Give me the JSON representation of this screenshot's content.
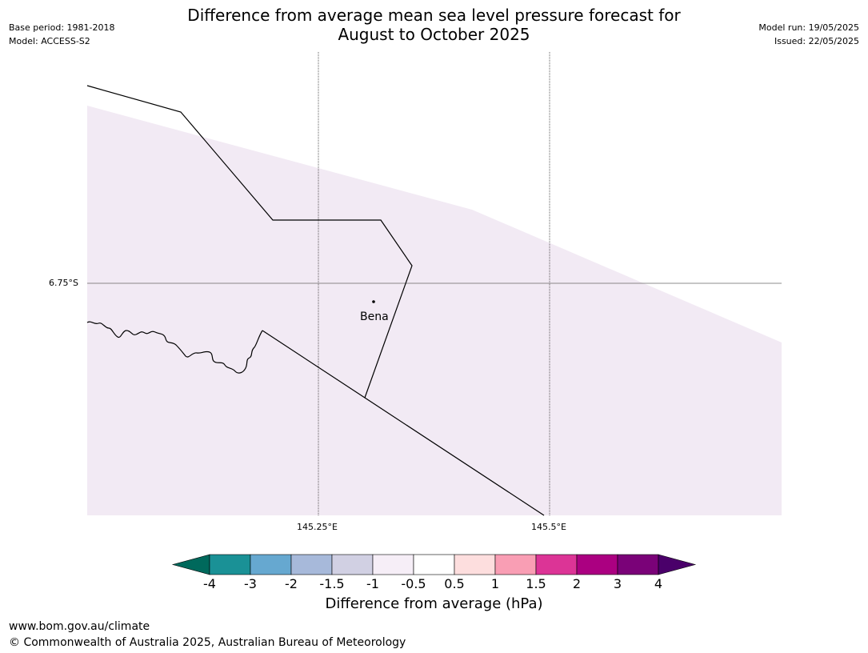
{
  "header": {
    "title_line1": "Difference from average mean sea level pressure forecast for",
    "title_line2": "August to October 2025",
    "base_period": "Base period: 1981-2018",
    "model": "Model: ACCESS-S2",
    "model_run": "Model run: 19/05/2025",
    "issued": "Issued: 22/05/2025"
  },
  "map": {
    "lat_label": "6.75°S",
    "lon_labels": [
      "145.25°E",
      "145.5°E"
    ],
    "place": "Bena",
    "shading_color": "#f2eaf4"
  },
  "colorbar": {
    "label": "Difference from average (hPa)",
    "ticks": [
      "-4",
      "-3",
      "-2",
      "-1.5",
      "-1",
      "-0.5",
      "0.5",
      "1",
      "1.5",
      "2",
      "3",
      "4"
    ],
    "colors": [
      "#00695c",
      "#1a9196",
      "#66a8d0",
      "#a7b9da",
      "#d1d0e3",
      "#f6eef7",
      "#ffffff",
      "#fddede",
      "#f99eb4",
      "#dc3496",
      "#ab0081",
      "#7a0278",
      "#4a006a"
    ]
  },
  "footer": {
    "url": "www.bom.gov.au/climate",
    "copyright": "© Commonwealth of Australia 2025, Australian Bureau of Meteorology"
  }
}
